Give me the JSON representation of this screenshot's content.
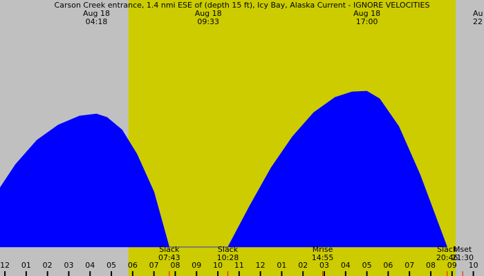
{
  "chart_data": {
    "type": "area",
    "title": "Carson Creek entrance, 1.4 nmi ESE of (depth 15 ft), Icy Bay, Alaska Current - IGNORE VELOCITIES",
    "x": [
      -0.23,
      0.5,
      1.5,
      2.5,
      3.5,
      4.3,
      4.8,
      5.5,
      6.2,
      7.0,
      7.72,
      8.5,
      9.5,
      10.47,
      11.5,
      12.5,
      13.5,
      14.5,
      15.5,
      16.3,
      17.0,
      17.6,
      18.5,
      19.5,
      20.77
    ],
    "values": [
      0.86,
      1.2,
      1.55,
      1.77,
      1.9,
      1.93,
      1.88,
      1.7,
      1.35,
      0.8,
      0,
      0,
      0,
      0,
      0.6,
      1.15,
      1.6,
      1.95,
      2.17,
      2.25,
      2.26,
      2.15,
      1.75,
      1.05,
      0
    ],
    "color": "#0000ff",
    "xlim": [
      -0.23,
      22.5
    ],
    "ylim": [
      0,
      3.58
    ],
    "xticks": [
      {
        "value": 0,
        "label": "12"
      },
      {
        "value": 1,
        "label": "01"
      },
      {
        "value": 2,
        "label": "02"
      },
      {
        "value": 3,
        "label": "03"
      },
      {
        "value": 4,
        "label": "04"
      },
      {
        "value": 5,
        "label": "05"
      },
      {
        "value": 6,
        "label": "06"
      },
      {
        "value": 7,
        "label": "07"
      },
      {
        "value": 8,
        "label": "08"
      },
      {
        "value": 9,
        "label": "09"
      },
      {
        "value": 10,
        "label": "10"
      },
      {
        "value": 11,
        "label": "11"
      },
      {
        "value": 12,
        "label": "12"
      },
      {
        "value": 13,
        "label": "01"
      },
      {
        "value": 14,
        "label": "02"
      },
      {
        "value": 15,
        "label": "03"
      },
      {
        "value": 16,
        "label": "04"
      },
      {
        "value": 17,
        "label": "05"
      },
      {
        "value": 18,
        "label": "06"
      },
      {
        "value": 19,
        "label": "07"
      },
      {
        "value": 20,
        "label": "08"
      },
      {
        "value": 21,
        "label": "09"
      },
      {
        "value": 22,
        "label": "10"
      }
    ],
    "daylight": [
      5.8,
      21.17
    ],
    "night_color": "#c0c0c0",
    "day_color": "#cccc00",
    "peaks": [
      {
        "x": 4.3,
        "date": "Aug 18",
        "time": "04:18"
      },
      {
        "x": 9.55,
        "date": "Aug 18",
        "time": "09:33"
      },
      {
        "x": 17.0,
        "date": "Aug 18",
        "time": "17:00"
      },
      {
        "x": 22.4,
        "date": "Au",
        "time": "22"
      }
    ],
    "events": [
      {
        "x": 7.72,
        "name": "Slack",
        "time": "07:43"
      },
      {
        "x": 10.47,
        "name": "Slack",
        "time": "10:28"
      },
      {
        "x": 14.92,
        "name": "Mrise",
        "time": "14:55"
      },
      {
        "x": 20.77,
        "name": "Slack",
        "time": "20:46"
      },
      {
        "x": 21.5,
        "name": "Mset",
        "time": "21:30"
      }
    ]
  }
}
